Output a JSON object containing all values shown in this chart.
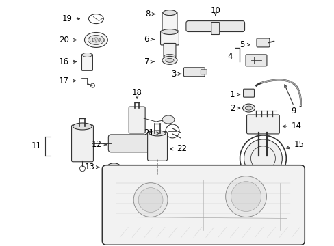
{
  "bg_color": "#ffffff",
  "fig_width": 4.89,
  "fig_height": 3.6,
  "dpi": 100,
  "text_color": "#000000",
  "line_color": "#333333",
  "font_size": 8.5,
  "font_size_small": 7.0
}
